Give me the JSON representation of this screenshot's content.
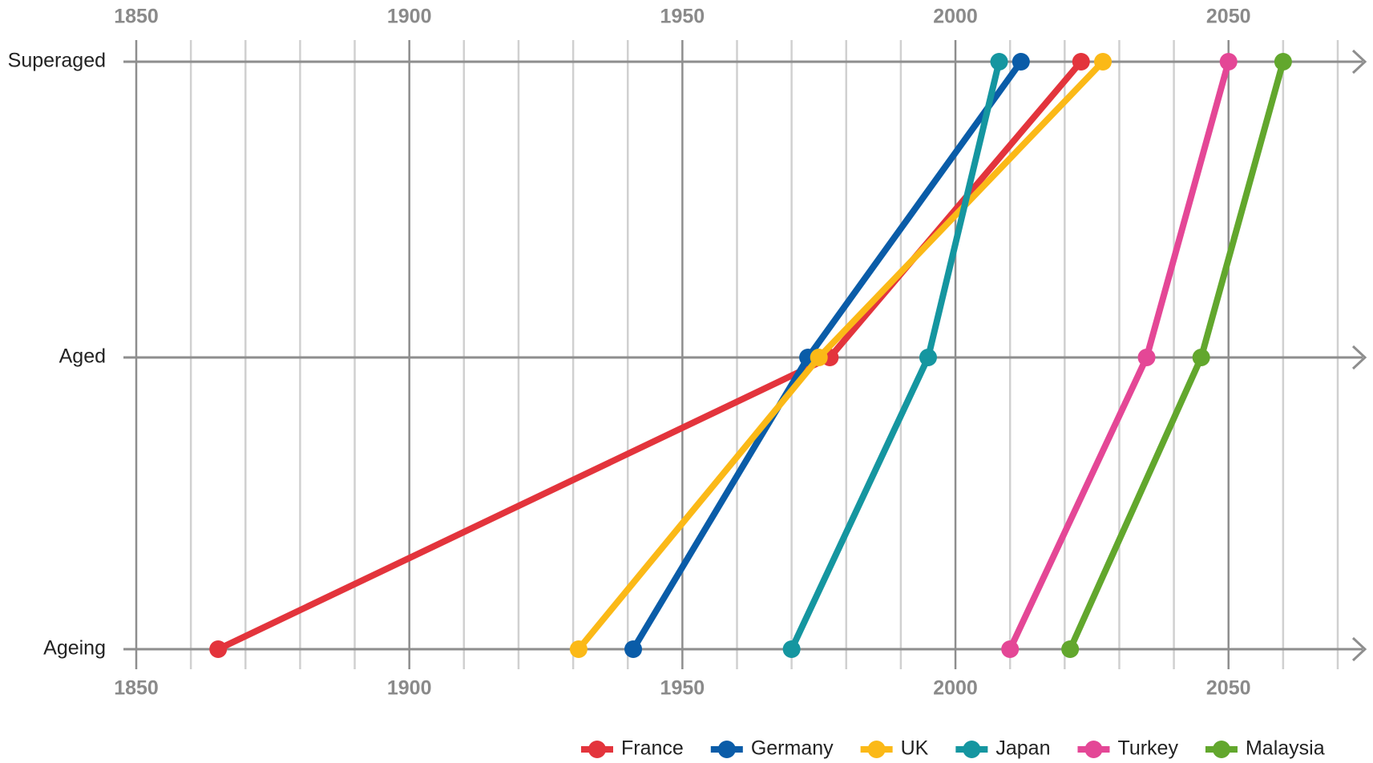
{
  "chart_data": {
    "type": "line",
    "categories": [
      "Ageing",
      "Aged",
      "Superaged"
    ],
    "xlim": [
      1850,
      2070
    ],
    "xticks": [
      1850,
      1900,
      1950,
      2000,
      2050
    ],
    "xminorticks": [
      1860,
      1870,
      1880,
      1890,
      1910,
      1920,
      1930,
      1940,
      1960,
      1970,
      1980,
      1990,
      2010,
      2020,
      2030,
      2040,
      2060,
      2070
    ],
    "grid": true,
    "legend": "bottom-right",
    "series": [
      {
        "name": "France",
        "color": "#e3343c",
        "values": [
          1865,
          1977,
          2023
        ]
      },
      {
        "name": "Germany",
        "color": "#0a5ca8",
        "values": [
          1941,
          1973,
          2012
        ]
      },
      {
        "name": "UK",
        "color": "#fbb917",
        "values": [
          1931,
          1975,
          2027
        ]
      },
      {
        "name": "Japan",
        "color": "#1596a0",
        "values": [
          1970,
          1995,
          2008
        ]
      },
      {
        "name": "Turkey",
        "color": "#e44796",
        "values": [
          2010,
          2035,
          2050
        ]
      },
      {
        "name": "Malaysia",
        "color": "#62a72d",
        "values": [
          2021,
          2045,
          2060
        ]
      }
    ]
  }
}
